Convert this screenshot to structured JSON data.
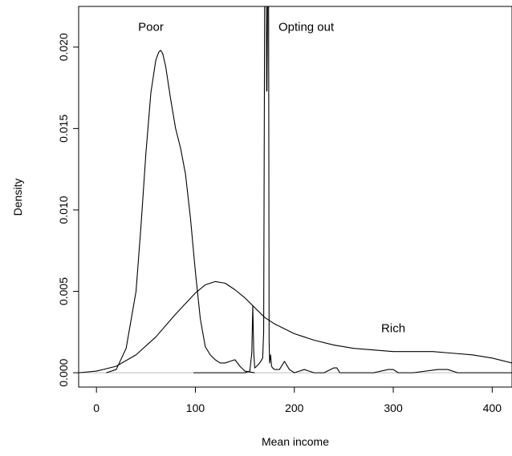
{
  "chart_data": {
    "type": "line",
    "xlabel": "Mean income",
    "ylabel": "Density",
    "xlim": [
      -18,
      420
    ],
    "ylim": [
      -0.00088,
      0.0225
    ],
    "x_ticks": [
      0,
      100,
      200,
      300,
      400
    ],
    "y_ticks": [
      0.0,
      0.005,
      0.01,
      0.015,
      0.02
    ],
    "x_tick_labels": [
      "0",
      "100",
      "200",
      "300",
      "400"
    ],
    "y_tick_labels": [
      "0.000",
      "0.005",
      "0.010",
      "0.015",
      "0.020"
    ],
    "grid": false,
    "legend": "none",
    "annotations": [
      {
        "text": "Poor",
        "x": 55,
        "y": 0.021
      },
      {
        "text": "Opting out",
        "x": 212,
        "y": 0.021
      },
      {
        "text": "Rich",
        "x": 300,
        "y": 0.0025
      }
    ],
    "series": [
      {
        "x": [
          10,
          20,
          30,
          40,
          45,
          50,
          55,
          60,
          63,
          65,
          67,
          70,
          75,
          80,
          85,
          90,
          95,
          100,
          105,
          110,
          115,
          120,
          125,
          130,
          135,
          140,
          145,
          150,
          160
        ],
        "y": [
          0.0,
          0.0002,
          0.0015,
          0.005,
          0.009,
          0.0135,
          0.0172,
          0.0192,
          0.0197,
          0.0198,
          0.0196,
          0.0188,
          0.0168,
          0.015,
          0.0138,
          0.0122,
          0.0095,
          0.0062,
          0.0033,
          0.0016,
          0.0011,
          0.0008,
          0.0006,
          0.0006,
          0.0007,
          0.0008,
          0.0004,
          0.0001,
          0.0
        ]
      },
      {
        "x": [
          -18,
          0,
          20,
          40,
          60,
          80,
          100,
          110,
          120,
          130,
          140,
          150,
          160,
          170,
          180,
          190,
          200,
          220,
          240,
          260,
          280,
          300,
          320,
          340,
          360,
          380,
          400,
          420
        ],
        "y": [
          0.0,
          0.0001,
          0.0004,
          0.0011,
          0.0022,
          0.0036,
          0.0049,
          0.0054,
          0.0056,
          0.0055,
          0.0051,
          0.0046,
          0.004,
          0.0034,
          0.003,
          0.0027,
          0.0024,
          0.002,
          0.0017,
          0.0015,
          0.0014,
          0.0013,
          0.0013,
          0.0013,
          0.0012,
          0.0011,
          0.0009,
          0.0006
        ]
      },
      {
        "x": [
          98,
          150,
          155,
          157,
          158,
          159,
          160,
          162,
          165,
          168,
          169,
          170,
          171,
          171.8,
          172,
          172.3,
          173,
          173.5,
          174,
          174.5,
          175,
          176,
          177,
          178,
          180,
          185,
          190,
          195,
          200,
          205,
          210,
          215,
          220,
          230,
          240,
          243,
          246,
          250,
          260,
          280,
          295,
          300,
          305,
          320,
          345,
          355,
          365,
          380,
          420
        ],
        "y": [
          0.0,
          0.0,
          0.0001,
          0.0012,
          0.0041,
          0.0012,
          0.0003,
          0.0004,
          0.0006,
          0.0009,
          0.0025,
          0.0225,
          0.0225,
          0.0225,
          0.0173,
          0.0173,
          0.0225,
          0.0225,
          0.0225,
          0.002,
          0.0006,
          0.0011,
          0.0004,
          0.0003,
          0.0002,
          0.0002,
          0.0007,
          0.0002,
          0.0,
          0.0001,
          0.0002,
          0.0001,
          0.0,
          0.0,
          0.0003,
          0.0003,
          0.0,
          0.0,
          0.0,
          0.0,
          0.0002,
          0.0002,
          0.0,
          0.0,
          0.0002,
          0.0002,
          0.0,
          0.0,
          0.0
        ]
      }
    ]
  }
}
